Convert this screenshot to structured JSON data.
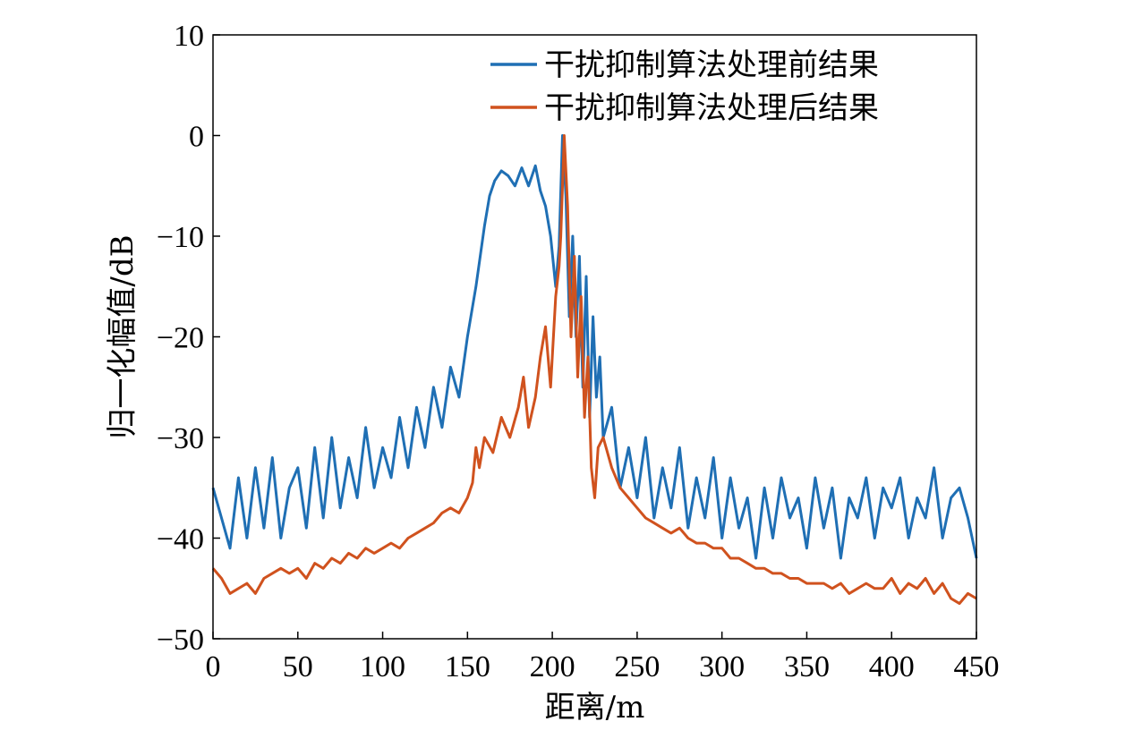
{
  "chart_data": {
    "type": "line",
    "xlabel": "距离/m",
    "ylabel": "归一化幅值/dB",
    "xlim": [
      0,
      450
    ],
    "ylim": [
      -50,
      10
    ],
    "xticks": [
      "0",
      "50",
      "100",
      "150",
      "200",
      "250",
      "300",
      "350",
      "400",
      "450"
    ],
    "yticks": [
      "10",
      "0",
      "−10",
      "−20",
      "−30",
      "−40",
      "−50"
    ],
    "grid": false,
    "legend_position": "top-right",
    "series": [
      {
        "name": "干扰抑制算法处理前结果",
        "color": "#1f6fb4",
        "x": [
          0,
          5,
          10,
          15,
          20,
          25,
          30,
          35,
          40,
          45,
          50,
          55,
          60,
          65,
          70,
          75,
          80,
          85,
          90,
          95,
          100,
          105,
          110,
          115,
          120,
          125,
          130,
          135,
          140,
          145,
          150,
          155,
          160,
          163,
          166,
          170,
          174,
          178,
          182,
          186,
          190,
          193,
          196,
          199,
          202,
          204,
          206,
          208,
          210,
          212,
          214,
          216,
          218,
          220,
          222,
          224,
          226,
          228,
          230,
          235,
          240,
          245,
          250,
          255,
          260,
          265,
          270,
          275,
          280,
          285,
          290,
          295,
          300,
          305,
          310,
          315,
          320,
          325,
          330,
          335,
          340,
          345,
          350,
          355,
          360,
          365,
          370,
          375,
          380,
          385,
          390,
          395,
          400,
          405,
          410,
          415,
          420,
          425,
          430,
          435,
          440,
          445,
          450
        ],
        "y": [
          -35,
          -38,
          -41,
          -34,
          -40,
          -33,
          -39,
          -32,
          -40,
          -35,
          -33,
          -39,
          -31,
          -38,
          -30,
          -37,
          -32,
          -36,
          -29,
          -35,
          -31,
          -34,
          -28,
          -33,
          -27,
          -31,
          -25,
          -29,
          -23,
          -26,
          -20,
          -15,
          -9,
          -6,
          -4.5,
          -3.5,
          -4,
          -5,
          -3.2,
          -5,
          -3,
          -5.5,
          -7,
          -10,
          -15,
          -11,
          0,
          -6,
          -18,
          -10,
          -20,
          -12,
          -25,
          -14,
          -28,
          -18,
          -26,
          -22,
          -30,
          -27,
          -35,
          -31,
          -36,
          -30,
          -38,
          -33,
          -37,
          -31,
          -39,
          -34,
          -38,
          -32,
          -40,
          -34,
          -39,
          -36,
          -42,
          -35,
          -40,
          -34,
          -38,
          -36,
          -41,
          -34,
          -39,
          -35,
          -42,
          -36,
          -38,
          -34,
          -40,
          -35,
          -37,
          -34,
          -40,
          -36,
          -38,
          -33,
          -40,
          -36,
          -35,
          -38,
          -42
        ]
      },
      {
        "name": "干扰抑制算法处理后结果",
        "color": "#d0521e",
        "x": [
          0,
          5,
          10,
          15,
          20,
          25,
          30,
          35,
          40,
          45,
          50,
          55,
          60,
          65,
          70,
          75,
          80,
          85,
          90,
          95,
          100,
          105,
          110,
          115,
          120,
          125,
          130,
          135,
          140,
          145,
          150,
          153,
          155,
          157,
          160,
          165,
          170,
          175,
          180,
          183,
          186,
          190,
          193,
          196,
          199,
          202,
          204,
          205,
          207,
          209,
          211,
          213,
          215,
          217,
          219,
          221,
          223,
          225,
          227,
          230,
          235,
          240,
          245,
          250,
          255,
          260,
          265,
          270,
          275,
          280,
          285,
          290,
          295,
          300,
          305,
          310,
          315,
          320,
          325,
          330,
          335,
          340,
          345,
          350,
          355,
          360,
          365,
          370,
          375,
          380,
          385,
          390,
          395,
          400,
          405,
          410,
          415,
          420,
          425,
          430,
          435,
          440,
          445,
          450
        ],
        "y": [
          -43,
          -44,
          -45.5,
          -45,
          -44.5,
          -45.5,
          -44,
          -43.5,
          -43,
          -43.5,
          -43,
          -44,
          -42.5,
          -43,
          -42,
          -42.5,
          -41.5,
          -42,
          -41,
          -41.5,
          -41,
          -40.5,
          -41,
          -40,
          -39.5,
          -39,
          -38.5,
          -37.5,
          -37,
          -37.5,
          -36,
          -34.5,
          -31,
          -33,
          -30,
          -31.5,
          -28,
          -30,
          -27,
          -24,
          -29,
          -26,
          -22,
          -19,
          -25,
          -16,
          -13,
          -10,
          0,
          -7,
          -20,
          -12,
          -24,
          -16,
          -28,
          -22,
          -33,
          -36,
          -31,
          -30,
          -33,
          -35,
          -36,
          -37,
          -38,
          -38.5,
          -39,
          -39.5,
          -39,
          -40,
          -40.5,
          -40.5,
          -41,
          -41,
          -42,
          -42,
          -42.5,
          -43,
          -43,
          -43.5,
          -43.5,
          -44,
          -44,
          -44.5,
          -44.5,
          -44.5,
          -45,
          -44.5,
          -45.5,
          -45,
          -44.5,
          -45,
          -45,
          -44,
          -45.5,
          -44.5,
          -45,
          -44,
          -45.5,
          -44.5,
          -46,
          -46.5,
          -45.5,
          -46
        ]
      }
    ]
  }
}
